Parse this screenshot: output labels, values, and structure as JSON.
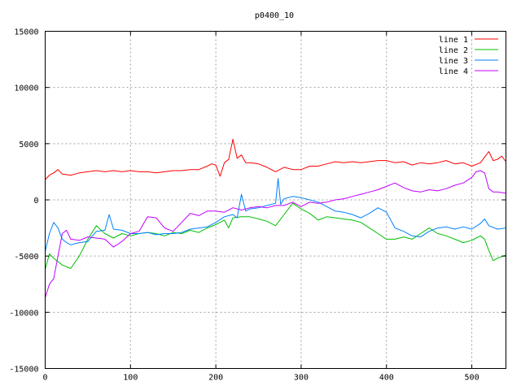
{
  "chart_data": {
    "type": "line",
    "title": "p0400_10",
    "xlabel": "",
    "ylabel": "",
    "xlim": [
      0,
      540
    ],
    "ylim": [
      -15000,
      15000
    ],
    "x_ticks": [
      0,
      100,
      200,
      300,
      400,
      500
    ],
    "y_ticks": [
      -15000,
      -10000,
      -5000,
      0,
      5000,
      10000,
      15000
    ],
    "grid": true,
    "legend_position": "top-right",
    "series": [
      {
        "name": "line 1",
        "color": "#ff0000",
        "points": [
          [
            0,
            1800
          ],
          [
            5,
            2200
          ],
          [
            10,
            2400
          ],
          [
            15,
            2700
          ],
          [
            20,
            2300
          ],
          [
            30,
            2200
          ],
          [
            40,
            2400
          ],
          [
            50,
            2500
          ],
          [
            60,
            2600
          ],
          [
            70,
            2500
          ],
          [
            80,
            2600
          ],
          [
            90,
            2500
          ],
          [
            100,
            2600
          ],
          [
            110,
            2500
          ],
          [
            120,
            2500
          ],
          [
            130,
            2400
          ],
          [
            140,
            2500
          ],
          [
            150,
            2600
          ],
          [
            160,
            2600
          ],
          [
            170,
            2700
          ],
          [
            180,
            2700
          ],
          [
            190,
            3000
          ],
          [
            195,
            3200
          ],
          [
            200,
            3100
          ],
          [
            205,
            2100
          ],
          [
            210,
            3300
          ],
          [
            215,
            3600
          ],
          [
            220,
            5400
          ],
          [
            225,
            3700
          ],
          [
            230,
            4000
          ],
          [
            235,
            3300
          ],
          [
            240,
            3300
          ],
          [
            250,
            3200
          ],
          [
            260,
            2900
          ],
          [
            270,
            2500
          ],
          [
            280,
            2900
          ],
          [
            290,
            2700
          ],
          [
            300,
            2700
          ],
          [
            310,
            3000
          ],
          [
            320,
            3000
          ],
          [
            330,
            3200
          ],
          [
            340,
            3400
          ],
          [
            350,
            3300
          ],
          [
            360,
            3400
          ],
          [
            370,
            3300
          ],
          [
            380,
            3400
          ],
          [
            390,
            3500
          ],
          [
            400,
            3500
          ],
          [
            410,
            3300
          ],
          [
            420,
            3400
          ],
          [
            430,
            3100
          ],
          [
            440,
            3300
          ],
          [
            450,
            3200
          ],
          [
            460,
            3300
          ],
          [
            470,
            3500
          ],
          [
            480,
            3200
          ],
          [
            490,
            3300
          ],
          [
            500,
            3000
          ],
          [
            510,
            3300
          ],
          [
            515,
            3800
          ],
          [
            520,
            4300
          ],
          [
            525,
            3500
          ],
          [
            530,
            3600
          ],
          [
            535,
            3900
          ],
          [
            540,
            3400
          ]
        ]
      },
      {
        "name": "line 2",
        "color": "#00c000",
        "points": [
          [
            0,
            -6200
          ],
          [
            5,
            -4800
          ],
          [
            10,
            -5200
          ],
          [
            20,
            -5800
          ],
          [
            30,
            -6100
          ],
          [
            40,
            -5000
          ],
          [
            50,
            -3500
          ],
          [
            60,
            -2300
          ],
          [
            70,
            -3000
          ],
          [
            80,
            -3400
          ],
          [
            90,
            -3000
          ],
          [
            100,
            -3200
          ],
          [
            110,
            -3000
          ],
          [
            120,
            -2900
          ],
          [
            130,
            -3000
          ],
          [
            140,
            -3200
          ],
          [
            150,
            -2900
          ],
          [
            160,
            -3000
          ],
          [
            170,
            -2700
          ],
          [
            180,
            -2900
          ],
          [
            190,
            -2500
          ],
          [
            200,
            -2200
          ],
          [
            210,
            -1800
          ],
          [
            215,
            -2500
          ],
          [
            220,
            -1600
          ],
          [
            230,
            -1500
          ],
          [
            240,
            -1500
          ],
          [
            250,
            -1700
          ],
          [
            260,
            -1900
          ],
          [
            270,
            -2300
          ],
          [
            280,
            -1300
          ],
          [
            290,
            -300
          ],
          [
            300,
            -800
          ],
          [
            310,
            -1200
          ],
          [
            320,
            -1800
          ],
          [
            330,
            -1500
          ],
          [
            340,
            -1600
          ],
          [
            350,
            -1700
          ],
          [
            360,
            -1800
          ],
          [
            370,
            -2000
          ],
          [
            380,
            -2500
          ],
          [
            390,
            -3000
          ],
          [
            400,
            -3500
          ],
          [
            410,
            -3500
          ],
          [
            420,
            -3300
          ],
          [
            430,
            -3500
          ],
          [
            440,
            -3000
          ],
          [
            450,
            -2500
          ],
          [
            460,
            -3000
          ],
          [
            470,
            -3200
          ],
          [
            480,
            -3500
          ],
          [
            490,
            -3800
          ],
          [
            500,
            -3600
          ],
          [
            505,
            -3400
          ],
          [
            510,
            -3200
          ],
          [
            515,
            -3500
          ],
          [
            520,
            -4500
          ],
          [
            525,
            -5400
          ],
          [
            530,
            -5200
          ],
          [
            540,
            -4900
          ]
        ]
      },
      {
        "name": "line 3",
        "color": "#0080ff",
        "points": [
          [
            0,
            -4600
          ],
          [
            5,
            -3000
          ],
          [
            10,
            -2000
          ],
          [
            15,
            -2500
          ],
          [
            20,
            -3500
          ],
          [
            25,
            -3800
          ],
          [
            30,
            -4000
          ],
          [
            40,
            -3800
          ],
          [
            50,
            -3700
          ],
          [
            60,
            -2800
          ],
          [
            70,
            -2700
          ],
          [
            75,
            -1300
          ],
          [
            80,
            -2600
          ],
          [
            90,
            -2700
          ],
          [
            100,
            -3000
          ],
          [
            110,
            -3000
          ],
          [
            120,
            -2900
          ],
          [
            130,
            -3100
          ],
          [
            140,
            -3000
          ],
          [
            150,
            -3000
          ],
          [
            160,
            -2900
          ],
          [
            170,
            -2600
          ],
          [
            180,
            -2500
          ],
          [
            190,
            -2400
          ],
          [
            200,
            -2000
          ],
          [
            210,
            -1500
          ],
          [
            220,
            -1300
          ],
          [
            225,
            -1600
          ],
          [
            230,
            500
          ],
          [
            235,
            -1000
          ],
          [
            240,
            -800
          ],
          [
            250,
            -700
          ],
          [
            260,
            -500
          ],
          [
            270,
            -300
          ],
          [
            273,
            1900
          ],
          [
            276,
            -400
          ],
          [
            280,
            100
          ],
          [
            290,
            300
          ],
          [
            300,
            200
          ],
          [
            310,
            0
          ],
          [
            320,
            -200
          ],
          [
            330,
            -600
          ],
          [
            340,
            -1000
          ],
          [
            350,
            -1100
          ],
          [
            360,
            -1300
          ],
          [
            370,
            -1600
          ],
          [
            380,
            -1200
          ],
          [
            390,
            -700
          ],
          [
            400,
            -1100
          ],
          [
            410,
            -2500
          ],
          [
            420,
            -2800
          ],
          [
            430,
            -3200
          ],
          [
            440,
            -3300
          ],
          [
            450,
            -2800
          ],
          [
            460,
            -2500
          ],
          [
            470,
            -2400
          ],
          [
            480,
            -2600
          ],
          [
            490,
            -2400
          ],
          [
            500,
            -2600
          ],
          [
            510,
            -2100
          ],
          [
            515,
            -1700
          ],
          [
            520,
            -2300
          ],
          [
            530,
            -2600
          ],
          [
            540,
            -2500
          ]
        ]
      },
      {
        "name": "line 4",
        "color": "#c000ff",
        "points": [
          [
            0,
            -8700
          ],
          [
            5,
            -7500
          ],
          [
            10,
            -7000
          ],
          [
            15,
            -5000
          ],
          [
            20,
            -3000
          ],
          [
            25,
            -2700
          ],
          [
            30,
            -3500
          ],
          [
            40,
            -3600
          ],
          [
            50,
            -3300
          ],
          [
            60,
            -3400
          ],
          [
            70,
            -3500
          ],
          [
            80,
            -4200
          ],
          [
            90,
            -3700
          ],
          [
            100,
            -3000
          ],
          [
            110,
            -2800
          ],
          [
            120,
            -1500
          ],
          [
            130,
            -1600
          ],
          [
            140,
            -2500
          ],
          [
            150,
            -2800
          ],
          [
            160,
            -2000
          ],
          [
            170,
            -1200
          ],
          [
            180,
            -1400
          ],
          [
            190,
            -1000
          ],
          [
            200,
            -1000
          ],
          [
            210,
            -1100
          ],
          [
            220,
            -700
          ],
          [
            230,
            -900
          ],
          [
            240,
            -700
          ],
          [
            250,
            -600
          ],
          [
            260,
            -700
          ],
          [
            270,
            -500
          ],
          [
            280,
            -500
          ],
          [
            290,
            -200
          ],
          [
            300,
            -600
          ],
          [
            310,
            -200
          ],
          [
            320,
            -300
          ],
          [
            330,
            -200
          ],
          [
            340,
            0
          ],
          [
            350,
            100
          ],
          [
            360,
            300
          ],
          [
            370,
            500
          ],
          [
            380,
            700
          ],
          [
            390,
            900
          ],
          [
            400,
            1200
          ],
          [
            410,
            1500
          ],
          [
            420,
            1100
          ],
          [
            430,
            800
          ],
          [
            440,
            700
          ],
          [
            450,
            900
          ],
          [
            460,
            800
          ],
          [
            470,
            1000
          ],
          [
            480,
            1300
          ],
          [
            490,
            1500
          ],
          [
            500,
            2000
          ],
          [
            505,
            2500
          ],
          [
            510,
            2600
          ],
          [
            515,
            2400
          ],
          [
            520,
            1000
          ],
          [
            525,
            700
          ],
          [
            530,
            700
          ],
          [
            540,
            600
          ]
        ]
      }
    ]
  }
}
